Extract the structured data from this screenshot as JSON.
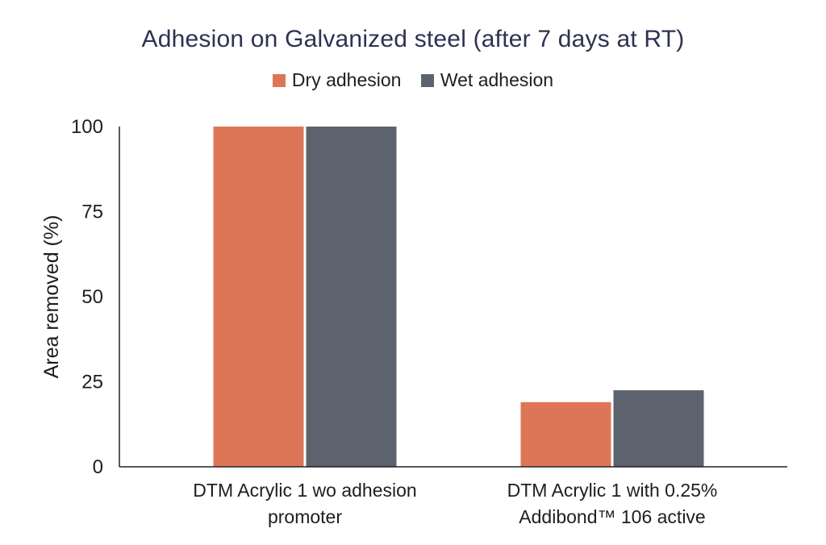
{
  "chart_data": {
    "type": "bar",
    "title": "Adhesion on Galvanized steel (after 7 days at RT)",
    "xlabel": "",
    "ylabel": "Area removed (%)",
    "ylim": [
      0,
      100
    ],
    "yticks": [
      "0",
      "25",
      "50",
      "75",
      "100"
    ],
    "ytick_values": [
      0,
      25,
      50,
      75,
      100
    ],
    "categories": [
      [
        "DTM Acrylic 1 wo adhesion",
        "promoter"
      ],
      [
        "DTM Acrylic 1 with 0.25%",
        "Addibond™ 106 active"
      ]
    ],
    "series": [
      {
        "name": "Dry adhesion",
        "color": "#dd7657",
        "values": [
          100,
          19
        ]
      },
      {
        "name": "Wet adhesion",
        "color": "#5d636e",
        "values": [
          100,
          22.5
        ]
      }
    ],
    "grid": false,
    "legend_position": "top-center"
  }
}
